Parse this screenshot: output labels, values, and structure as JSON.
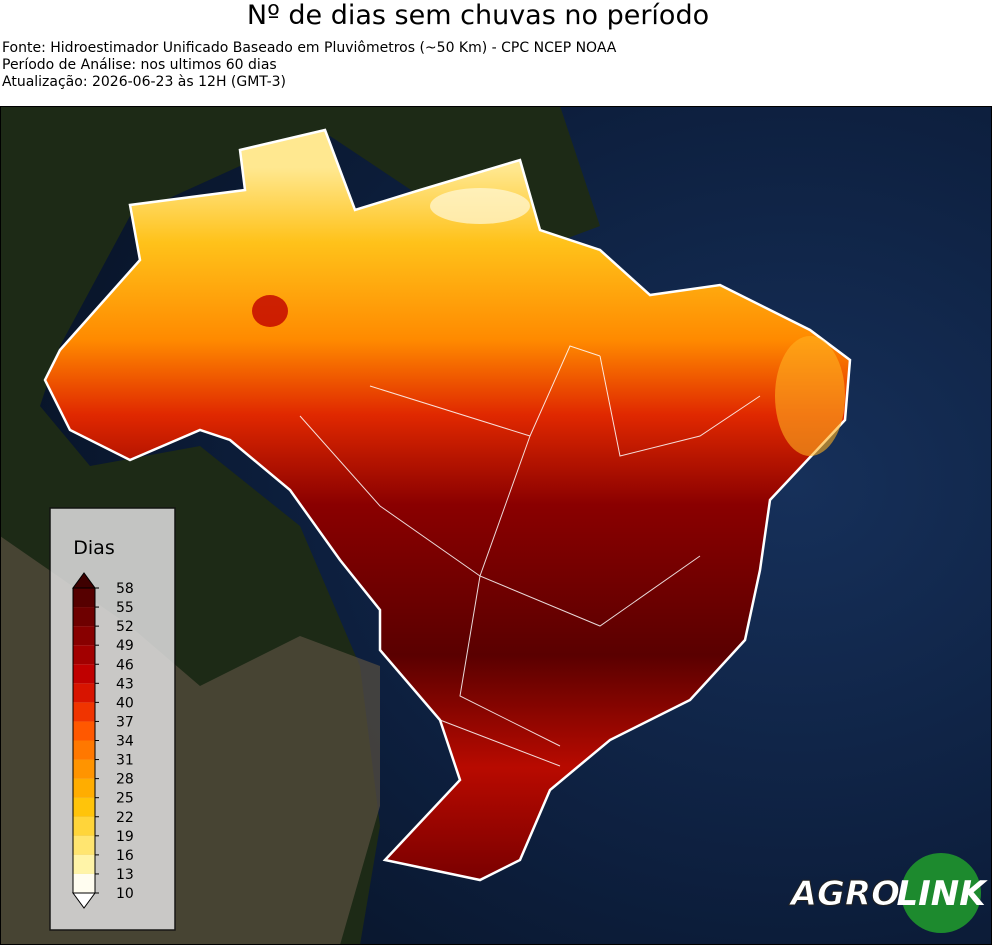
{
  "header": {
    "title": "Nº de dias sem chuvas no período",
    "lines": [
      "Fonte: Hidroestimador Unificado Baseado em Pluviômetros (~50 Km) - CPC NCEP NOAA",
      "Período de Análise: nos ultimos 60 dias",
      "Atualização: 2026-06-23 às 12H (GMT-3)"
    ]
  },
  "legend": {
    "title": "Dias",
    "ticks": [
      10,
      13,
      16,
      19,
      22,
      25,
      28,
      31,
      34,
      37,
      40,
      43,
      46,
      49,
      52,
      55,
      58
    ],
    "colors": [
      "#fffdf0",
      "#fff4a8",
      "#ffe570",
      "#ffd53a",
      "#ffc40a",
      "#ffad00",
      "#ff9400",
      "#ff7800",
      "#ff5800",
      "#f03400",
      "#d81400",
      "#c00000",
      "#a20000",
      "#880000",
      "#6e0000",
      "#560000"
    ],
    "under_color": "#ffffff",
    "over_color": "#3e0000"
  },
  "logo": {
    "left": "AGRO",
    "right": "LINK"
  }
}
